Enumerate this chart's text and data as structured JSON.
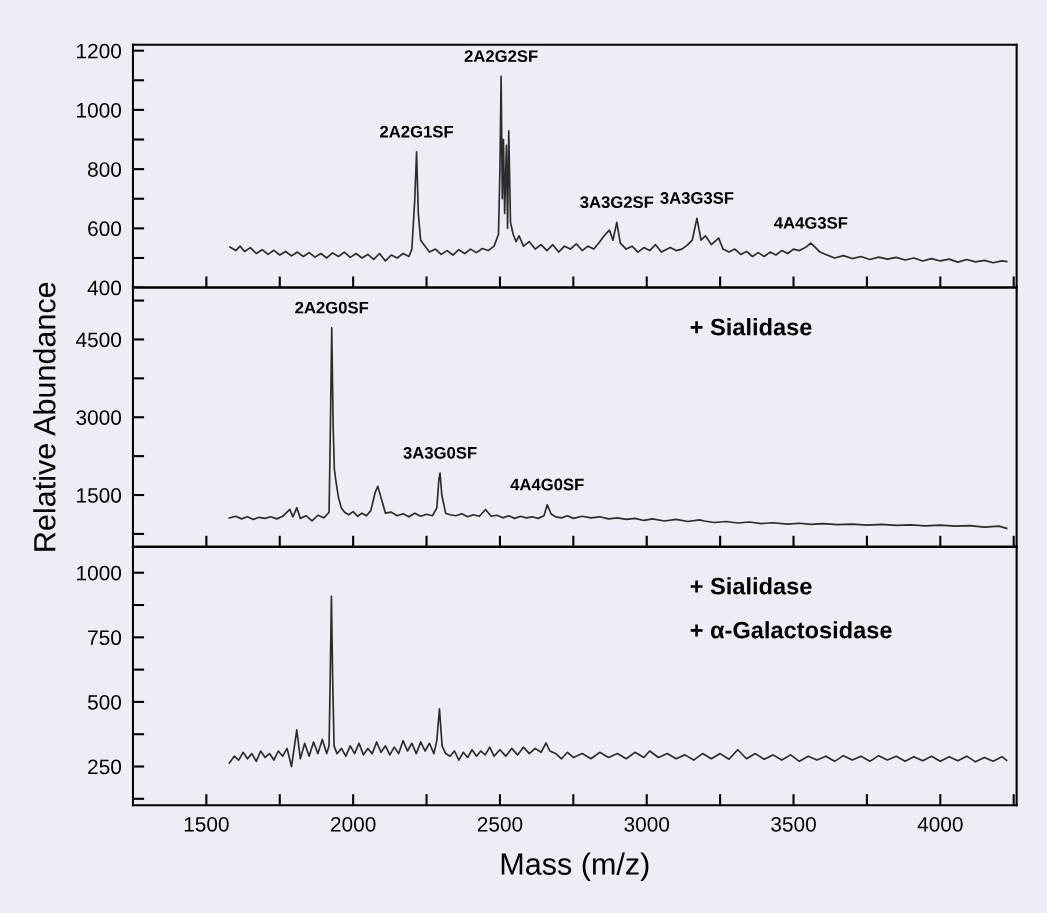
{
  "chart_data": [
    {
      "type": "line",
      "tick_labels": "y",
      "grid": false,
      "marker": "none",
      "line_style": "solid",
      "xlim": [
        1250,
        4260
      ],
      "xticks": [
        1500,
        {
          "value": 1750,
          "label": null
        },
        2000,
        {
          "value": 2250,
          "label": null
        },
        2500,
        {
          "value": 2750,
          "label": null
        },
        3000,
        {
          "value": 3250,
          "label": null
        },
        3500,
        {
          "value": 3750,
          "label": null
        },
        4000,
        {
          "value": 4250,
          "label": null
        }
      ],
      "ylim": [
        400,
        1220
      ],
      "yticks": [
        400,
        {
          "value": 500,
          "label": null
        },
        600,
        {
          "value": 700,
          "label": null
        },
        800,
        {
          "value": 900,
          "label": null
        },
        1000,
        {
          "value": 1100,
          "label": null
        },
        1200
      ],
      "annotations": [
        {
          "text": "2A2G1SF",
          "x": 2216,
          "y": 858
        },
        {
          "text": "2A2G2SF",
          "x": 2504,
          "y": 1113
        },
        {
          "text": "3A3G2SF",
          "x": 2898,
          "y": 620
        },
        {
          "text": "3A3G3SF",
          "x": 3171,
          "y": 634
        },
        {
          "text": "4A4G3SF",
          "x": 3559,
          "y": 550
        }
      ],
      "series": [
        {
          "color": "#2b2b2b",
          "x": [
            1580,
            1600,
            1615,
            1630,
            1650,
            1670,
            1690,
            1710,
            1730,
            1750,
            1770,
            1790,
            1810,
            1830,
            1850,
            1870,
            1890,
            1910,
            1930,
            1950,
            1970,
            1990,
            2010,
            2030,
            2050,
            2070,
            2090,
            2110,
            2130,
            2150,
            2170,
            2190,
            2200,
            2210,
            2216,
            2222,
            2230,
            2245,
            2260,
            2280,
            2300,
            2320,
            2340,
            2360,
            2380,
            2400,
            2420,
            2440,
            2460,
            2480,
            2495,
            2500,
            2504,
            2508,
            2512,
            2516,
            2522,
            2526,
            2530,
            2536,
            2545,
            2555,
            2565,
            2580,
            2600,
            2620,
            2640,
            2660,
            2680,
            2700,
            2720,
            2740,
            2760,
            2780,
            2800,
            2820,
            2840,
            2855,
            2873,
            2885,
            2898,
            2910,
            2930,
            2950,
            2970,
            2990,
            3010,
            3030,
            3050,
            3080,
            3100,
            3120,
            3140,
            3155,
            3171,
            3185,
            3200,
            3220,
            3245,
            3260,
            3280,
            3300,
            3320,
            3340,
            3360,
            3380,
            3400,
            3420,
            3440,
            3460,
            3480,
            3500,
            3520,
            3540,
            3559,
            3575,
            3590,
            3610,
            3640,
            3670,
            3700,
            3730,
            3760,
            3790,
            3820,
            3850,
            3880,
            3910,
            3940,
            3970,
            4000,
            4030,
            4060,
            4090,
            4120,
            4150,
            4180,
            4210,
            4226
          ],
          "values": [
            537,
            525,
            540,
            522,
            535,
            515,
            528,
            512,
            526,
            510,
            522,
            507,
            520,
            505,
            518,
            503,
            515,
            500,
            517,
            505,
            520,
            502,
            515,
            500,
            512,
            495,
            515,
            490,
            510,
            500,
            515,
            505,
            530,
            700,
            858,
            650,
            560,
            540,
            520,
            530,
            512,
            525,
            510,
            528,
            515,
            530,
            518,
            532,
            525,
            540,
            580,
            800,
            1113,
            700,
            900,
            650,
            880,
            600,
            929,
            620,
            580,
            555,
            575,
            540,
            555,
            530,
            545,
            525,
            545,
            520,
            540,
            530,
            548,
            525,
            540,
            530,
            555,
            575,
            594,
            560,
            620,
            550,
            530,
            540,
            520,
            535,
            525,
            545,
            520,
            535,
            525,
            530,
            545,
            560,
            634,
            560,
            575,
            545,
            567,
            530,
            520,
            530,
            512,
            522,
            505,
            518,
            505,
            520,
            510,
            525,
            515,
            530,
            525,
            535,
            550,
            535,
            520,
            512,
            500,
            508,
            498,
            505,
            495,
            503,
            496,
            502,
            493,
            500,
            490,
            498,
            490,
            496,
            486,
            495,
            487,
            492,
            484,
            490,
            488
          ]
        }
      ]
    },
    {
      "type": "line",
      "tick_labels": "y",
      "grid": false,
      "marker": "none",
      "line_style": "solid",
      "ylabel": "Relative Abundance",
      "xlim": [
        1250,
        4260
      ],
      "xticks": [
        1500,
        {
          "value": 1750,
          "label": null
        },
        2000,
        {
          "value": 2250,
          "label": null
        },
        2500,
        {
          "value": 2750,
          "label": null
        },
        3000,
        {
          "value": 3250,
          "label": null
        },
        3500,
        {
          "value": 3750,
          "label": null
        },
        4000,
        {
          "value": 4250,
          "label": null
        }
      ],
      "ylim": [
        500,
        5500
      ],
      "yticks": [
        {
          "value": 750,
          "label": null
        },
        1500,
        {
          "value": 2250,
          "label": null
        },
        3000,
        {
          "value": 3750,
          "label": null
        },
        4500,
        {
          "value": 5250,
          "label": null
        }
      ],
      "annotations": [
        {
          "text": "2A2G0SF",
          "x": 1927,
          "y": 4722
        },
        {
          "text": "3A3G0SF",
          "x": 2296,
          "y": 1922
        },
        {
          "text": "4A4G0SF",
          "x": 2661,
          "y": 1311
        },
        "+ Sialidase"
      ],
      "series": [
        {
          "color": "#2b2b2b",
          "x": [
            1578,
            1600,
            1620,
            1640,
            1660,
            1680,
            1700,
            1720,
            1740,
            1760,
            1784,
            1795,
            1808,
            1820,
            1840,
            1860,
            1880,
            1900,
            1918,
            1923,
            1927,
            1932,
            1936,
            1941,
            1950,
            1960,
            1971,
            1985,
            2000,
            2015,
            2030,
            2045,
            2060,
            2075,
            2084,
            2095,
            2110,
            2130,
            2150,
            2170,
            2190,
            2210,
            2230,
            2250,
            2270,
            2285,
            2292,
            2296,
            2302,
            2315,
            2330,
            2350,
            2370,
            2390,
            2410,
            2430,
            2451,
            2470,
            2490,
            2510,
            2530,
            2550,
            2570,
            2590,
            2610,
            2630,
            2650,
            2661,
            2675,
            2690,
            2710,
            2730,
            2750,
            2780,
            2810,
            2840,
            2870,
            2900,
            2930,
            2960,
            2990,
            3020,
            3060,
            3100,
            3140,
            3180,
            3196,
            3230,
            3270,
            3310,
            3350,
            3390,
            3430,
            3480,
            3520,
            3560,
            3600,
            3650,
            3700,
            3750,
            3800,
            3850,
            3900,
            3950,
            4000,
            4050,
            4100,
            4150,
            4200,
            4226
          ],
          "values": [
            1056,
            1090,
            1040,
            1080,
            1030,
            1070,
            1050,
            1080,
            1040,
            1090,
            1222,
            1080,
            1256,
            1050,
            1100,
            1000,
            1110,
            1060,
            1167,
            3000,
            4722,
            2800,
            2000,
            1778,
            1450,
            1250,
            1167,
            1120,
            1180,
            1090,
            1150,
            1100,
            1200,
            1550,
            1667,
            1450,
            1150,
            1170,
            1100,
            1140,
            1080,
            1150,
            1090,
            1130,
            1100,
            1250,
            1800,
            1922,
            1500,
            1150,
            1120,
            1100,
            1140,
            1080,
            1120,
            1090,
            1222,
            1090,
            1110,
            1060,
            1100,
            1050,
            1090,
            1060,
            1080,
            1050,
            1100,
            1311,
            1130,
            1080,
            1060,
            1100,
            1050,
            1090,
            1060,
            1080,
            1040,
            1060,
            1030,
            1050,
            1010,
            1040,
            1000,
            1030,
            990,
            1020,
            1000,
            970,
            990,
            960,
            980,
            950,
            965,
            940,
            955,
            935,
            950,
            930,
            940,
            920,
            935,
            915,
            925,
            905,
            920,
            900,
            910,
            880,
            900,
            856
          ]
        }
      ]
    },
    {
      "type": "line",
      "grid": false,
      "marker": "none",
      "line_style": "solid",
      "xlabel": "Mass (m/z)",
      "xlim": [
        1250,
        4260
      ],
      "xticks": [
        1500,
        {
          "value": 1750,
          "label": null
        },
        2000,
        {
          "value": 2250,
          "label": null
        },
        2500,
        {
          "value": 2750,
          "label": null
        },
        3000,
        {
          "value": 3250,
          "label": null
        },
        3500,
        {
          "value": 3750,
          "label": null
        },
        4000,
        {
          "value": 4250,
          "label": null
        }
      ],
      "ylim": [
        100,
        1100
      ],
      "yticks": [
        {
          "value": 125,
          "label": null
        },
        250,
        {
          "value": 375,
          "label": null
        },
        500,
        {
          "value": 625,
          "label": null
        },
        750,
        {
          "value": 875,
          "label": null
        },
        1000
      ],
      "annotations": [
        "+ Sialidase",
        "+ α-Galactosidase"
      ],
      "series": [
        {
          "color": "#2b2b2b",
          "x": [
            1578,
            1595,
            1610,
            1625,
            1640,
            1655,
            1670,
            1685,
            1700,
            1715,
            1730,
            1745,
            1760,
            1775,
            1790,
            1808,
            1820,
            1835,
            1850,
            1865,
            1880,
            1895,
            1910,
            1918,
            1922,
            1926,
            1930,
            1935,
            1945,
            1960,
            1975,
            1990,
            2005,
            2020,
            2035,
            2050,
            2065,
            2080,
            2095,
            2110,
            2125,
            2140,
            2155,
            2170,
            2185,
            2200,
            2215,
            2230,
            2245,
            2260,
            2275,
            2285,
            2294,
            2303,
            2315,
            2330,
            2345,
            2360,
            2375,
            2390,
            2405,
            2420,
            2435,
            2450,
            2465,
            2480,
            2500,
            2520,
            2540,
            2560,
            2580,
            2600,
            2620,
            2640,
            2657,
            2670,
            2690,
            2710,
            2730,
            2750,
            2780,
            2810,
            2840,
            2870,
            2900,
            2930,
            2960,
            2990,
            3010,
            3040,
            3070,
            3100,
            3130,
            3160,
            3190,
            3220,
            3250,
            3280,
            3310,
            3340,
            3370,
            3400,
            3430,
            3460,
            3490,
            3520,
            3550,
            3580,
            3610,
            3640,
            3670,
            3700,
            3730,
            3760,
            3790,
            3820,
            3850,
            3880,
            3910,
            3940,
            3970,
            4000,
            4030,
            4060,
            4090,
            4120,
            4150,
            4180,
            4210,
            4226
          ],
          "values": [
            263,
            290,
            275,
            305,
            280,
            300,
            270,
            310,
            285,
            300,
            275,
            310,
            290,
            320,
            250,
            392,
            280,
            340,
            290,
            345,
            300,
            355,
            300,
            330,
            600,
            909,
            600,
            330,
            300,
            320,
            290,
            330,
            300,
            340,
            295,
            320,
            300,
            345,
            305,
            330,
            295,
            325,
            300,
            350,
            310,
            340,
            300,
            345,
            310,
            340,
            300,
            350,
            473,
            330,
            300,
            290,
            310,
            275,
            305,
            285,
            315,
            290,
            310,
            295,
            325,
            290,
            315,
            290,
            320,
            295,
            325,
            300,
            320,
            305,
            341,
            310,
            300,
            280,
            305,
            285,
            300,
            280,
            305,
            285,
            300,
            280,
            305,
            285,
            310,
            285,
            300,
            280,
            295,
            275,
            300,
            280,
            300,
            278,
            315,
            280,
            300,
            278,
            295,
            275,
            295,
            270,
            290,
            275,
            290,
            270,
            292,
            275,
            290,
            270,
            292,
            275,
            290,
            270,
            288,
            272,
            290,
            270,
            288,
            272,
            290,
            268,
            285,
            270,
            288,
            274
          ]
        }
      ]
    }
  ]
}
